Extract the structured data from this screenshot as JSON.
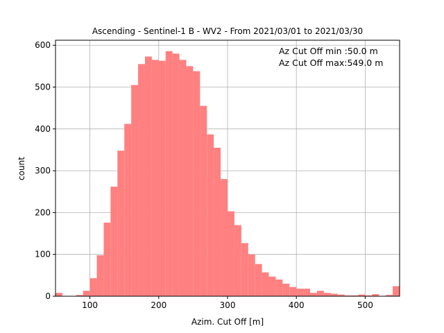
{
  "chart_data": {
    "type": "bar",
    "title": "Ascending - Sentinel-1 B - WV2 - From 2021/03/01 to 2021/03/30",
    "xlabel": "Azim. Cut Off [m]",
    "ylabel": "count",
    "xlim": [
      50,
      550
    ],
    "ylim": [
      0,
      612
    ],
    "x_ticks": [
      100,
      200,
      300,
      400,
      500
    ],
    "y_ticks": [
      0,
      100,
      200,
      300,
      400,
      500,
      600
    ],
    "grid": true,
    "bar_color": "#ff8080",
    "bin_width": 10,
    "bin_starts": [
      50,
      60,
      70,
      80,
      90,
      100,
      110,
      120,
      130,
      140,
      150,
      160,
      170,
      180,
      190,
      200,
      210,
      220,
      230,
      240,
      250,
      260,
      270,
      280,
      290,
      300,
      310,
      320,
      330,
      340,
      350,
      360,
      370,
      380,
      390,
      400,
      410,
      420,
      430,
      440,
      450,
      460,
      470,
      480,
      490,
      500,
      510,
      520,
      530,
      540
    ],
    "values": [
      8,
      0,
      0,
      3,
      13,
      43,
      98,
      176,
      262,
      348,
      412,
      505,
      555,
      573,
      565,
      563,
      586,
      580,
      565,
      550,
      538,
      455,
      387,
      355,
      280,
      203,
      170,
      127,
      100,
      77,
      57,
      47,
      40,
      30,
      22,
      18,
      18,
      8,
      13,
      8,
      6,
      4,
      2,
      2,
      4,
      2,
      5,
      0,
      3,
      24
    ],
    "annotations": [
      "Az Cut Off min :50.0 m",
      "Az Cut Off max:549.0 m"
    ]
  }
}
